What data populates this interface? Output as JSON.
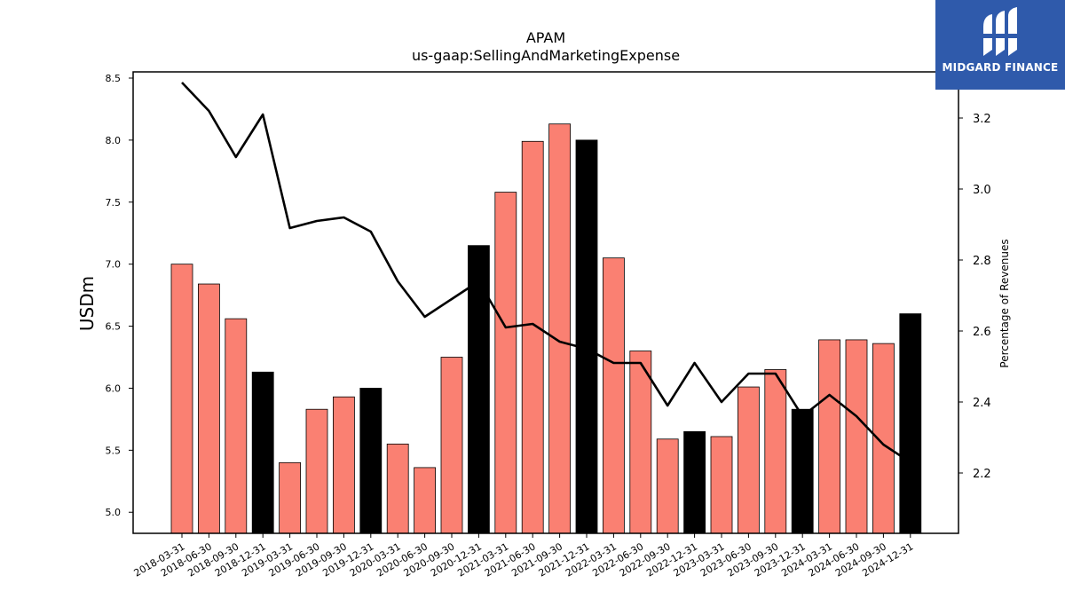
{
  "logo": {
    "text": "MIDGARD FINANCE",
    "icon": "midgard-m-logo-icon",
    "background": "#2f5aab"
  },
  "chart_data": {
    "type": "bar",
    "title": "APAM",
    "subtitle": "us-gaap:SellingAndMarketingExpense",
    "ylabel": "USDm",
    "y2label": "Percentage of Revenues",
    "ylim": [
      4.83,
      8.55
    ],
    "y2lim": [
      2.03,
      3.33
    ],
    "yticks": [
      "5.0",
      "5.5",
      "6.0",
      "6.5",
      "7.0",
      "7.5",
      "8.0",
      "8.5"
    ],
    "y2ticks": [
      "2.2",
      "2.4",
      "2.6",
      "2.8",
      "3.0",
      "3.2"
    ],
    "categories": [
      "2018-03-31",
      "2018-06-30",
      "2018-09-30",
      "2018-12-31",
      "2019-03-31",
      "2019-06-30",
      "2019-09-30",
      "2019-12-31",
      "2020-03-31",
      "2020-06-30",
      "2020-09-30",
      "2020-12-31",
      "2021-03-31",
      "2021-06-30",
      "2021-09-30",
      "2021-12-31",
      "2022-03-31",
      "2022-06-30",
      "2022-09-30",
      "2022-12-31",
      "2023-03-31",
      "2023-06-30",
      "2023-09-30",
      "2023-12-31",
      "2024-03-31",
      "2024-06-30",
      "2024-09-30",
      "2024-12-31"
    ],
    "series": [
      {
        "type": "bar",
        "values": [
          7.0,
          6.84,
          6.56,
          6.13,
          5.4,
          5.83,
          5.93,
          6.0,
          5.55,
          5.36,
          6.25,
          7.15,
          7.58,
          7.99,
          8.13,
          8.0,
          7.05,
          6.3,
          5.59,
          5.65,
          5.61,
          6.01,
          6.15,
          5.83,
          6.39,
          6.39,
          6.36,
          6.6
        ]
      },
      {
        "type": "line",
        "axis": "right",
        "values": [
          3.3,
          3.22,
          3.09,
          3.21,
          2.89,
          2.91,
          2.92,
          2.88,
          2.74,
          2.64,
          2.69,
          2.74,
          2.61,
          2.62,
          2.57,
          2.55,
          2.51,
          2.51,
          2.39,
          2.51,
          2.4,
          2.48,
          2.48,
          2.36,
          2.42,
          2.36,
          2.28,
          2.23
        ]
      }
    ],
    "colors": {
      "bar": "#fa8072",
      "bar_year_end": "#000000",
      "line": "#000000"
    },
    "grid": false,
    "legend": "none"
  }
}
